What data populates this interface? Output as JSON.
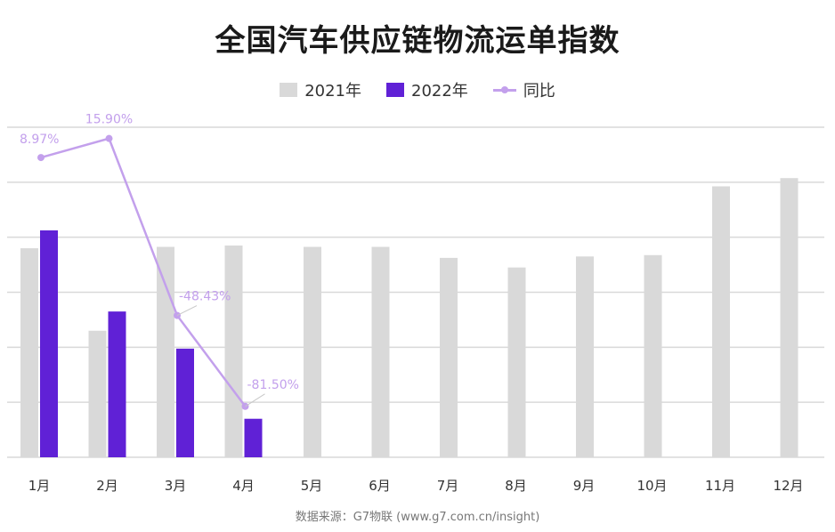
{
  "title": "全国汽车供应链物流运单指数",
  "source": "数据来源：G7物联 (www.g7.com.cn/insight)",
  "colors": {
    "y2021": "#d9d9d9",
    "y2022": "#6021d6",
    "yoy": "#c3a0ec",
    "grid": "#d9d9d9"
  },
  "chart_data": {
    "type": "bar",
    "categories": [
      "1月",
      "2月",
      "3月",
      "4月",
      "5月",
      "6月",
      "7月",
      "8月",
      "9月",
      "10月",
      "11月",
      "12月"
    ],
    "ylim": [
      0,
      120
    ],
    "series": [
      {
        "name": "2021年",
        "values": [
          76,
          46,
          76.5,
          77,
          76.5,
          76.5,
          72.5,
          69,
          73,
          73.5,
          98.5,
          101.5
        ]
      },
      {
        "name": "2022年",
        "values": [
          82.5,
          53,
          39.5,
          14,
          null,
          null,
          null,
          null,
          null,
          null,
          null,
          null
        ]
      }
    ],
    "yoy": {
      "name": "同比",
      "values": [
        8.97,
        15.9,
        -48.43,
        -81.5
      ],
      "labels": [
        "8.97%",
        "15.90%",
        "-48.43%",
        "-81.50%"
      ],
      "range": [
        -100,
        20
      ]
    }
  }
}
